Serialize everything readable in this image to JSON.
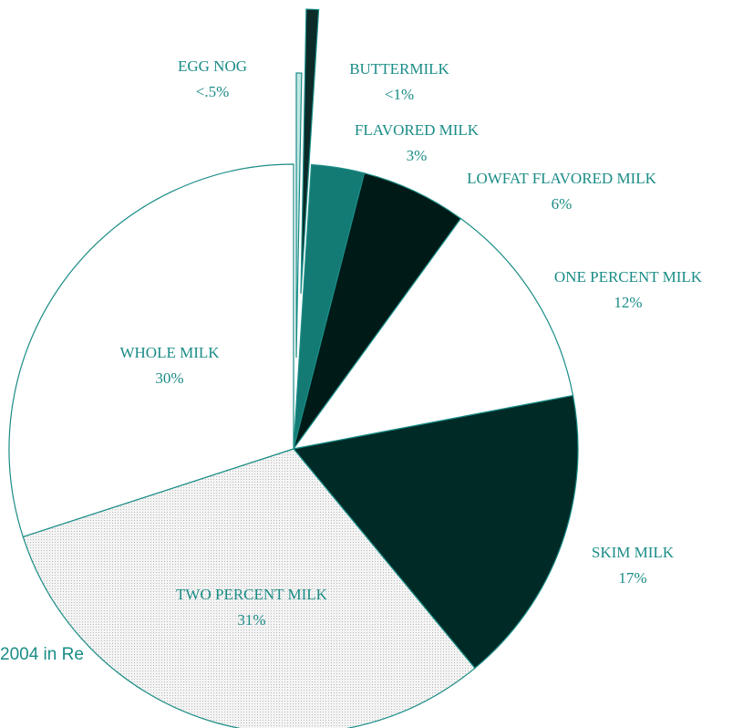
{
  "chart_data": {
    "type": "pie",
    "title": "",
    "slices": [
      {
        "name": "EGG NOG",
        "pct_label": "<.5%",
        "value": 0.3,
        "fill": "#bfe8e4",
        "exploded": true
      },
      {
        "name": "BUTTERMILK",
        "pct_label": "<1%",
        "value": 0.7,
        "fill": "#0b2a28",
        "exploded": true
      },
      {
        "name": "FLAVORED MILK",
        "pct_label": "3%",
        "value": 3,
        "fill": "#147a74"
      },
      {
        "name": "LOWFAT FLAVORED MILK",
        "pct_label": "6%",
        "value": 6,
        "fill": "#001a17"
      },
      {
        "name": "ONE PERCENT MILK",
        "pct_label": "12%",
        "value": 12,
        "fill": "#ffffff"
      },
      {
        "name": "SKIM MILK",
        "pct_label": "17%",
        "value": 17,
        "fill": "#002a26"
      },
      {
        "name": "TWO PERCENT MILK",
        "pct_label": "31%",
        "value": 31,
        "fill": "url(#dots)"
      },
      {
        "name": "WHOLE MILK",
        "pct_label": "30%",
        "value": 30,
        "fill": "#ffffff"
      }
    ],
    "colors": {
      "label_text": "#1a8c86",
      "outline": "#1a8c86"
    }
  },
  "footer_text": "2004 in Re"
}
